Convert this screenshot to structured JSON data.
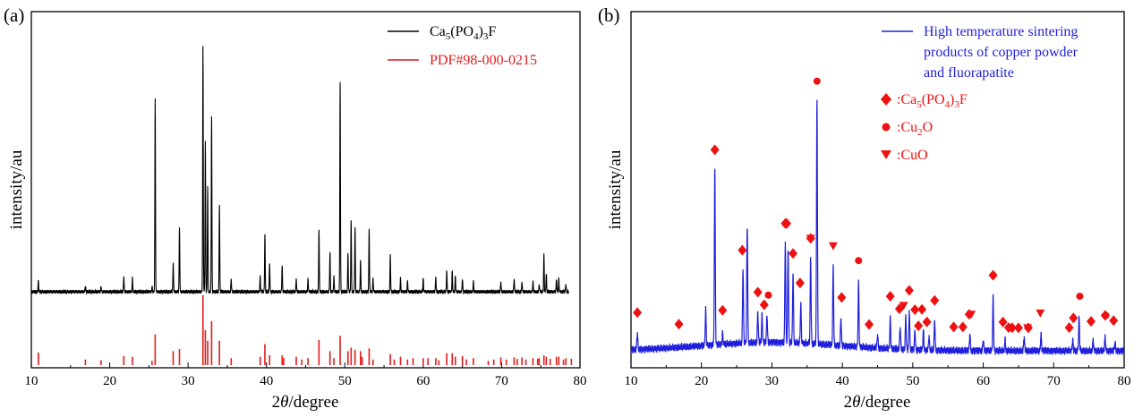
{
  "panel_a": {
    "letter": "(a)",
    "xlabel_pre": "2",
    "xlabel_theta": "θ",
    "xlabel_post": "/degree",
    "ylabel": "intensity/au",
    "xticks": [
      "10",
      "20",
      "30",
      "40",
      "50",
      "60",
      "70",
      "80"
    ],
    "legend": [
      {
        "pre": "Ca",
        "s1": "5",
        "mid": "(PO",
        "s2": "4",
        "end": ")",
        "s3": "3",
        "tail": "F",
        "color": "#000000"
      },
      {
        "pre": "PDF#98-000-0215",
        "s1": "",
        "mid": "",
        "s2": "",
        "end": "",
        "s3": "",
        "tail": "",
        "color": "#e41a1c"
      }
    ]
  },
  "panel_b": {
    "letter": "(b)",
    "xlabel_pre": "2",
    "xlabel_theta": "θ",
    "xlabel_post": "/degree",
    "ylabel": "intensity/au",
    "xticks": [
      "10",
      "20",
      "30",
      "40",
      "50",
      "60",
      "70",
      "80"
    ],
    "legend_line": [
      "High temperature sintering",
      "products  of copper powder",
      "and fluorapatite"
    ],
    "legend_line_color": "#1f1fdd",
    "marker_color": "#ee1111",
    "markers": [
      {
        "shape": "diamond",
        "pre": ":Ca",
        "s1": "5",
        "mid": "(PO",
        "s2": "4",
        "end": ")",
        "s3": "3",
        "tail": "F"
      },
      {
        "shape": "circle",
        "pre": ":Cu",
        "s1": "2",
        "mid": "O",
        "s2": "",
        "end": "",
        "s3": "",
        "tail": ""
      },
      {
        "shape": "triangle",
        "pre": ":CuO",
        "s1": "",
        "mid": "",
        "s2": "",
        "end": "",
        "s3": "",
        "tail": ""
      }
    ]
  },
  "chart_data": [
    {
      "type": "line",
      "panel": "(a)",
      "xlabel": "2θ/degree",
      "ylabel": "intensity/au",
      "xlim": [
        10,
        80
      ],
      "series": [
        {
          "name": "Ca5(PO4)3F",
          "color": "#000000",
          "peaks": [
            [
              10.9,
              0.04
            ],
            [
              16.9,
              0.025
            ],
            [
              18.9,
              0.02
            ],
            [
              21.8,
              0.06
            ],
            [
              22.9,
              0.05
            ],
            [
              25.4,
              0.02
            ],
            [
              25.8,
              0.73
            ],
            [
              28.1,
              0.11
            ],
            [
              28.9,
              0.25
            ],
            [
              31.9,
              0.93
            ],
            [
              32.2,
              0.57
            ],
            [
              32.5,
              0.4
            ],
            [
              33.0,
              0.67
            ],
            [
              34.0,
              0.33
            ],
            [
              35.5,
              0.05
            ],
            [
              39.2,
              0.06
            ],
            [
              39.8,
              0.22
            ],
            [
              40.4,
              0.11
            ],
            [
              42.0,
              0.1
            ],
            [
              43.8,
              0.05
            ],
            [
              45.3,
              0.05
            ],
            [
              46.7,
              0.24
            ],
            [
              48.1,
              0.15
            ],
            [
              48.6,
              0.06
            ],
            [
              49.4,
              0.8
            ],
            [
              50.4,
              0.15
            ],
            [
              50.8,
              0.27
            ],
            [
              51.3,
              0.25
            ],
            [
              52.0,
              0.12
            ],
            [
              53.1,
              0.24
            ],
            [
              53.6,
              0.05
            ],
            [
              55.8,
              0.14
            ],
            [
              57.1,
              0.05
            ],
            [
              58.0,
              0.04
            ],
            [
              60.0,
              0.05
            ],
            [
              61.6,
              0.06
            ],
            [
              63.0,
              0.08
            ],
            [
              63.7,
              0.08
            ],
            [
              64.1,
              0.06
            ],
            [
              65.0,
              0.05
            ],
            [
              66.4,
              0.04
            ],
            [
              69.9,
              0.04
            ],
            [
              71.6,
              0.05
            ],
            [
              72.6,
              0.04
            ],
            [
              74.0,
              0.04
            ],
            [
              74.8,
              0.03
            ],
            [
              75.4,
              0.14
            ],
            [
              75.7,
              0.07
            ],
            [
              77.0,
              0.05
            ],
            [
              77.3,
              0.05
            ],
            [
              78.2,
              0.03
            ]
          ]
        },
        {
          "name": "PDF#98-000-0215",
          "color": "#e41a1c",
          "sticks": [
            [
              10.9,
              0.18
            ],
            [
              16.9,
              0.08
            ],
            [
              18.9,
              0.07
            ],
            [
              21.8,
              0.13
            ],
            [
              22.9,
              0.12
            ],
            [
              25.4,
              0.06
            ],
            [
              25.8,
              0.44
            ],
            [
              28.1,
              0.2
            ],
            [
              28.9,
              0.23
            ],
            [
              31.9,
              1.0
            ],
            [
              32.2,
              0.5
            ],
            [
              32.5,
              0.35
            ],
            [
              33.0,
              0.63
            ],
            [
              34.0,
              0.35
            ],
            [
              35.5,
              0.1
            ],
            [
              39.2,
              0.12
            ],
            [
              39.8,
              0.3
            ],
            [
              40.4,
              0.14
            ],
            [
              42.0,
              0.14
            ],
            [
              42.2,
              0.1
            ],
            [
              43.8,
              0.12
            ],
            [
              44.5,
              0.08
            ],
            [
              45.3,
              0.1
            ],
            [
              46.7,
              0.36
            ],
            [
              48.1,
              0.2
            ],
            [
              48.6,
              0.1
            ],
            [
              49.4,
              0.42
            ],
            [
              50.4,
              0.2
            ],
            [
              50.8,
              0.25
            ],
            [
              51.3,
              0.22
            ],
            [
              52.0,
              0.2
            ],
            [
              52.2,
              0.12
            ],
            [
              53.1,
              0.24
            ],
            [
              53.6,
              0.08
            ],
            [
              55.8,
              0.16
            ],
            [
              56.3,
              0.08
            ],
            [
              57.1,
              0.12
            ],
            [
              58.0,
              0.08
            ],
            [
              58.7,
              0.1
            ],
            [
              60.0,
              0.1
            ],
            [
              60.6,
              0.1
            ],
            [
              61.6,
              0.1
            ],
            [
              62.0,
              0.07
            ],
            [
              63.0,
              0.17
            ],
            [
              63.7,
              0.17
            ],
            [
              64.1,
              0.12
            ],
            [
              65.0,
              0.13
            ],
            [
              65.5,
              0.08
            ],
            [
              66.4,
              0.1
            ],
            [
              68.3,
              0.06
            ],
            [
              69.0,
              0.08
            ],
            [
              69.9,
              0.11
            ],
            [
              70.6,
              0.08
            ],
            [
              71.6,
              0.11
            ],
            [
              72.0,
              0.09
            ],
            [
              72.6,
              0.11
            ],
            [
              73.1,
              0.08
            ],
            [
              74.0,
              0.1
            ],
            [
              74.6,
              0.09
            ],
            [
              74.8,
              0.1
            ],
            [
              75.4,
              0.14
            ],
            [
              75.7,
              0.12
            ],
            [
              76.2,
              0.09
            ],
            [
              77.0,
              0.12
            ],
            [
              77.3,
              0.12
            ],
            [
              77.9,
              0.08
            ],
            [
              78.2,
              0.1
            ],
            [
              78.9,
              0.09
            ]
          ]
        }
      ]
    },
    {
      "type": "line",
      "panel": "(b)",
      "xlabel": "2θ/degree",
      "ylabel": "intensity/au",
      "xlim": [
        10,
        80
      ],
      "series": [
        {
          "name": "High temperature sintering products  of copper powder and fluorapatite",
          "color": "#1f1fdd",
          "peaks": [
            [
              10.9,
              0.06
            ],
            [
              20.6,
              0.13
            ],
            [
              21.9,
              0.63
            ],
            [
              23.0,
              0.04
            ],
            [
              25.9,
              0.27
            ],
            [
              26.5,
              0.42
            ],
            [
              28.0,
              0.11
            ],
            [
              28.6,
              0.1
            ],
            [
              29.3,
              0.1
            ],
            [
              31.9,
              0.36
            ],
            [
              32.3,
              0.34
            ],
            [
              33.0,
              0.25
            ],
            [
              34.1,
              0.14
            ],
            [
              35.5,
              0.31
            ],
            [
              36.4,
              0.88
            ],
            [
              38.7,
              0.28
            ],
            [
              39.8,
              0.1
            ],
            [
              42.3,
              0.23
            ],
            [
              45.0,
              0.05
            ],
            [
              46.8,
              0.11
            ],
            [
              48.2,
              0.08
            ],
            [
              49.0,
              0.12
            ],
            [
              49.5,
              0.14
            ],
            [
              50.3,
              0.07
            ],
            [
              51.5,
              0.07
            ],
            [
              52.3,
              0.05
            ],
            [
              53.1,
              0.11
            ],
            [
              58.1,
              0.06
            ],
            [
              60.0,
              0.04
            ],
            [
              61.4,
              0.19
            ],
            [
              63.1,
              0.04
            ],
            [
              65.8,
              0.05
            ],
            [
              68.2,
              0.06
            ],
            [
              72.7,
              0.04
            ],
            [
              73.6,
              0.12
            ],
            [
              75.6,
              0.04
            ],
            [
              77.3,
              0.05
            ],
            [
              78.7,
              0.03
            ]
          ]
        }
      ],
      "markers": [
        {
          "phase": "Ca5(PO4)3F",
          "shape": "diamond",
          "x": [
            10.9,
            16.8,
            21.9,
            23.0,
            25.8,
            28.0,
            28.9,
            31.9,
            32.1,
            33.0,
            34.0,
            35.5,
            39.9,
            43.8,
            46.8,
            48.1,
            49.5,
            50.3,
            50.8,
            51.3,
            52.0,
            53.1,
            55.8,
            57.1,
            58.0,
            61.4,
            62.8,
            63.6,
            64.1,
            65.0,
            66.4,
            72.2,
            72.8,
            75.3,
            77.3,
            78.5
          ]
        },
        {
          "phase": "Cu2O",
          "shape": "circle",
          "x": [
            29.5,
            36.4,
            42.3,
            61.4,
            73.7,
            77.4
          ]
        },
        {
          "phase": "CuO",
          "shape": "triangle",
          "x": [
            35.5,
            38.7,
            48.7,
            58.3,
            66.3,
            68.1
          ]
        }
      ]
    }
  ]
}
